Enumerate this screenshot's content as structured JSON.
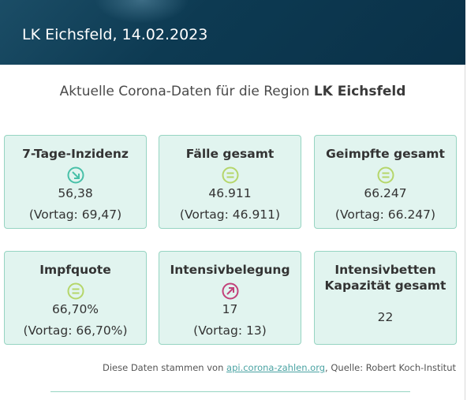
{
  "header": {
    "title": "LK Eichsfeld, 14.02.2023"
  },
  "subtitle": {
    "prefix": "Aktuelle Corona-Daten für die Region",
    "region": "LK Eichsfeld"
  },
  "cards": [
    {
      "label": "7-Tage-Inzidenz",
      "icon": "arrow-down-right-icon",
      "icon_color": "#48c0a8",
      "value": "56,38",
      "prev": "(Vortag: 69,47)"
    },
    {
      "label": "Fälle gesamt",
      "icon": "equals-icon",
      "icon_color": "#b5d66a",
      "value": "46.911",
      "prev": "(Vortag: 46.911)"
    },
    {
      "label": "Geimpfte gesamt",
      "icon": "equals-icon",
      "icon_color": "#b5d66a",
      "value": "66.247",
      "prev": "(Vortag: 66.247)"
    },
    {
      "label": "Impfquote",
      "icon": "equals-icon",
      "icon_color": "#b5d66a",
      "value": "66,70%",
      "prev": "(Vortag: 66,70%)"
    },
    {
      "label": "Intensivbelegung",
      "icon": "arrow-up-right-icon",
      "icon_color": "#c2417a",
      "value": "17",
      "prev": "(Vortag: 13)"
    },
    {
      "label_line1": "Intensivbetten",
      "label_line2": "Kapazität gesamt",
      "value": "22"
    }
  ],
  "footer": {
    "prefix": "Diese Daten stammen von",
    "link": "api.corona-zahlen.org",
    "suffix": ", Quelle: Robert Koch-Institut"
  }
}
